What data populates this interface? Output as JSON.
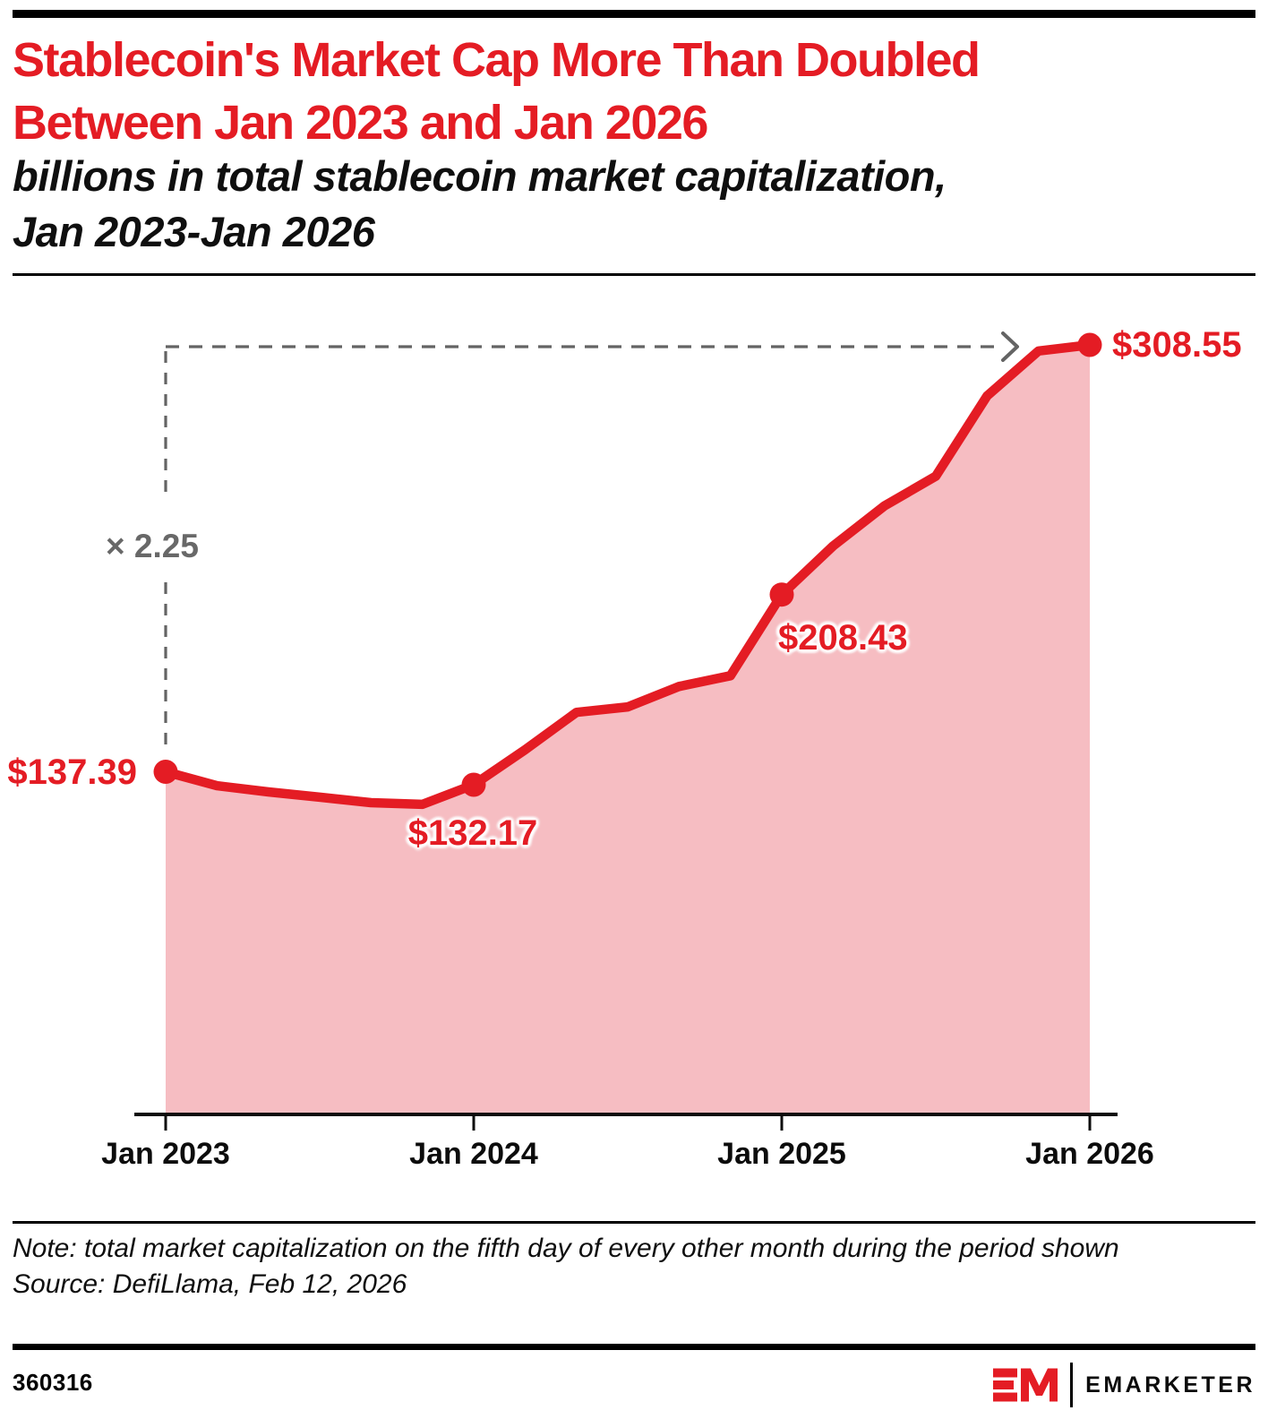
{
  "header": {
    "title_lines": [
      "Stablecoin's Market Cap More Than Doubled",
      "Between Jan 2023 and Jan 2026"
    ],
    "subtitle_lines": [
      "billions in total stablecoin market capitalization,",
      "Jan 2023-Jan 2026"
    ]
  },
  "chart_data": {
    "type": "area",
    "title": "billions in total stablecoin market capitalization, Jan 2023-Jan 2026",
    "x": [
      "Jan 2023",
      "Mar 2023",
      "May 2023",
      "Jul 2023",
      "Sep 2023",
      "Nov 2023",
      "Jan 2024",
      "Mar 2024",
      "May 2024",
      "Jul 2024",
      "Sep 2024",
      "Nov 2024",
      "Jan 2025",
      "Mar 2025",
      "May 2025",
      "Jul 2025",
      "Sep 2025",
      "Nov 2025",
      "Jan 2026"
    ],
    "values": [
      137.39,
      131.8,
      129.3,
      127.2,
      125.0,
      124.3,
      132.17,
      146.2,
      161.2,
      163.4,
      171.6,
      175.9,
      208.43,
      227.9,
      244.0,
      255.9,
      288.1,
      306.1,
      308.55
    ],
    "unit": "USD billions",
    "ylim": [
      0,
      320
    ],
    "grid": false,
    "legend": false,
    "x_tick_labels": [
      "Jan 2023",
      "Jan 2024",
      "Jan 2025",
      "Jan 2026"
    ],
    "labeled_points": [
      {
        "x": "Jan 2023",
        "value": 137.39,
        "label": "$137.39"
      },
      {
        "x": "Jan 2024",
        "value": 132.17,
        "label": "$132.17"
      },
      {
        "x": "Jan 2025",
        "value": 208.43,
        "label": "$208.43"
      },
      {
        "x": "Jan 2026",
        "value": 308.55,
        "label": "$308.55"
      }
    ],
    "annotation": {
      "text": "× 2.25"
    }
  },
  "colors": {
    "accent": "#e41c24",
    "area_fill": "#f6bdc2",
    "annotation_gray": "#646464"
  },
  "footnote": {
    "note": "Note: total market capitalization on the fifth day of every other month during the period shown",
    "source": "Source: DefiLlama, Feb 12, 2026"
  },
  "footer": {
    "chart_id": "360316",
    "brand": "EMARKETER"
  }
}
